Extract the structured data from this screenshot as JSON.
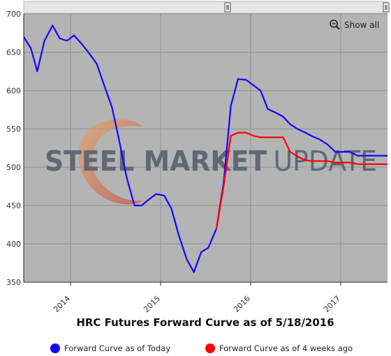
{
  "chart_data": {
    "type": "line",
    "title": "HRC Futures Forward Curve as of 5/18/2016",
    "watermark": {
      "bold": "STEEL MARKET",
      "light": "UPDATE"
    },
    "zoom_button_label": "Show all",
    "xlim": [
      2013.48,
      2017.52
    ],
    "ylim": [
      350,
      700
    ],
    "y_ticks": [
      350,
      400,
      450,
      500,
      550,
      600,
      650,
      700
    ],
    "x_ticks": [
      {
        "value": 2014,
        "label": "2014"
      },
      {
        "value": 2015,
        "label": "2015"
      },
      {
        "value": 2016,
        "label": "2016"
      },
      {
        "value": 2017,
        "label": "2017"
      }
    ],
    "grid": true,
    "legend_position": "bottom",
    "colors": {
      "plot_bg": "#b4b4b4",
      "grid": "#8e8e8e",
      "axis": "#222222"
    },
    "series": [
      {
        "name": "Forward Curve as of Today",
        "color": "#1a00ff",
        "points": [
          [
            2013.48,
            670
          ],
          [
            2013.56,
            655
          ],
          [
            2013.63,
            625
          ],
          [
            2013.71,
            665
          ],
          [
            2013.8,
            685
          ],
          [
            2013.88,
            668
          ],
          [
            2013.96,
            665
          ],
          [
            2014.04,
            672
          ],
          [
            2014.13,
            660
          ],
          [
            2014.21,
            648
          ],
          [
            2014.29,
            635
          ],
          [
            2014.37,
            608
          ],
          [
            2014.46,
            578
          ],
          [
            2014.54,
            535
          ],
          [
            2014.62,
            488
          ],
          [
            2014.71,
            450
          ],
          [
            2014.79,
            450
          ],
          [
            2014.87,
            458
          ],
          [
            2014.95,
            465
          ],
          [
            2015.04,
            463
          ],
          [
            2015.12,
            446
          ],
          [
            2015.2,
            412
          ],
          [
            2015.29,
            380
          ],
          [
            2015.37,
            363
          ],
          [
            2015.45,
            389
          ],
          [
            2015.53,
            395
          ],
          [
            2015.62,
            420
          ],
          [
            2015.7,
            480
          ],
          [
            2015.78,
            580
          ],
          [
            2015.86,
            615
          ],
          [
            2015.95,
            614
          ],
          [
            2016.03,
            607
          ],
          [
            2016.11,
            600
          ],
          [
            2016.19,
            576
          ],
          [
            2016.28,
            571
          ],
          [
            2016.36,
            566
          ],
          [
            2016.44,
            556
          ],
          [
            2016.52,
            550
          ],
          [
            2016.61,
            545
          ],
          [
            2016.69,
            540
          ],
          [
            2016.77,
            536
          ],
          [
            2016.85,
            530
          ],
          [
            2016.94,
            520
          ],
          [
            2017.02,
            520
          ],
          [
            2017.1,
            520
          ],
          [
            2017.19,
            515
          ],
          [
            2017.27,
            515
          ],
          [
            2017.35,
            515
          ],
          [
            2017.43,
            515
          ],
          [
            2017.52,
            515
          ]
        ]
      },
      {
        "name": "Forward Curve as of 4 weeks ago",
        "color": "#ff0000",
        "points": [
          [
            2015.62,
            420
          ],
          [
            2015.7,
            475
          ],
          [
            2015.78,
            541
          ],
          [
            2015.86,
            545
          ],
          [
            2015.95,
            545
          ],
          [
            2016.03,
            541
          ],
          [
            2016.11,
            539
          ],
          [
            2016.19,
            539
          ],
          [
            2016.28,
            539
          ],
          [
            2016.36,
            539
          ],
          [
            2016.44,
            520
          ],
          [
            2016.52,
            514
          ],
          [
            2016.61,
            509
          ],
          [
            2016.69,
            508
          ],
          [
            2016.77,
            508
          ],
          [
            2016.85,
            508
          ],
          [
            2016.94,
            506
          ],
          [
            2017.02,
            506
          ],
          [
            2017.1,
            506
          ],
          [
            2017.19,
            504
          ],
          [
            2017.27,
            504
          ],
          [
            2017.35,
            504
          ],
          [
            2017.43,
            504
          ],
          [
            2017.52,
            504
          ]
        ]
      }
    ]
  }
}
